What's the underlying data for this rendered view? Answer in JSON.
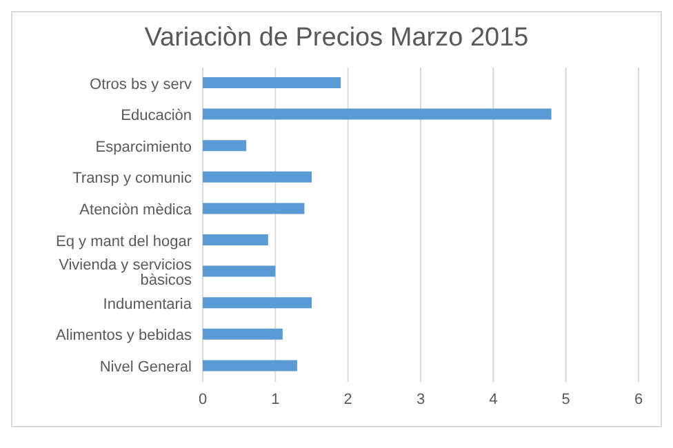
{
  "chart_data": {
    "type": "bar",
    "orientation": "horizontal",
    "title": "Variaciòn de Precios Marzo 2015",
    "categories": [
      "Otros bs y serv",
      "Educaciòn",
      "Esparcimiento",
      "Transp y comunic",
      "Atenciòn mèdica",
      "Eq y mant del hogar",
      "Vivienda y servicios bàsicos",
      "Indumentaria",
      "Alimentos y bebidas",
      "Nivel General"
    ],
    "values": [
      1.9,
      4.8,
      0.6,
      1.5,
      1.4,
      0.9,
      1.0,
      1.5,
      1.1,
      1.3
    ],
    "color": "#5b9bd5",
    "xlim": [
      0,
      6
    ],
    "xticks": [
      0,
      1,
      2,
      3,
      4,
      5,
      6
    ],
    "grid": "x"
  }
}
